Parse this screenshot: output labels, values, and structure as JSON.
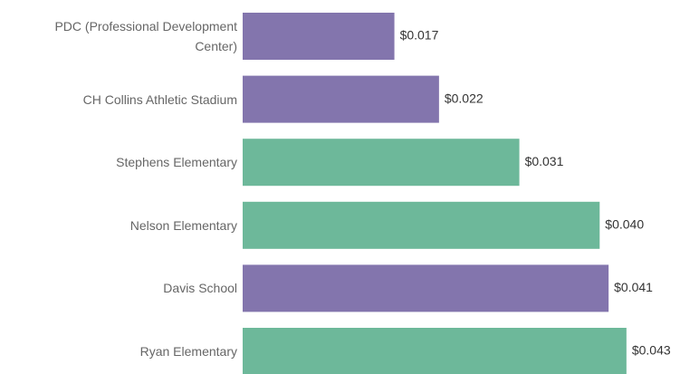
{
  "chart_data": {
    "type": "bar",
    "orientation": "horizontal",
    "categories": [
      "PDC (Professional Development Center)",
      "CH Collins Athletic Stadium",
      "Stephens Elementary",
      "Nelson Elementary",
      "Davis School",
      "Ryan Elementary"
    ],
    "values": [
      0.017,
      0.022,
      0.031,
      0.04,
      0.041,
      0.043
    ],
    "value_labels": [
      "$0.017",
      "$0.022",
      "$0.031",
      "$0.040",
      "$0.041",
      "$0.043"
    ],
    "colors": [
      "#8375ad",
      "#8375ad",
      "#6db89a",
      "#6db89a",
      "#8375ad",
      "#6db89a"
    ],
    "xlim": [
      0,
      0.049
    ]
  }
}
